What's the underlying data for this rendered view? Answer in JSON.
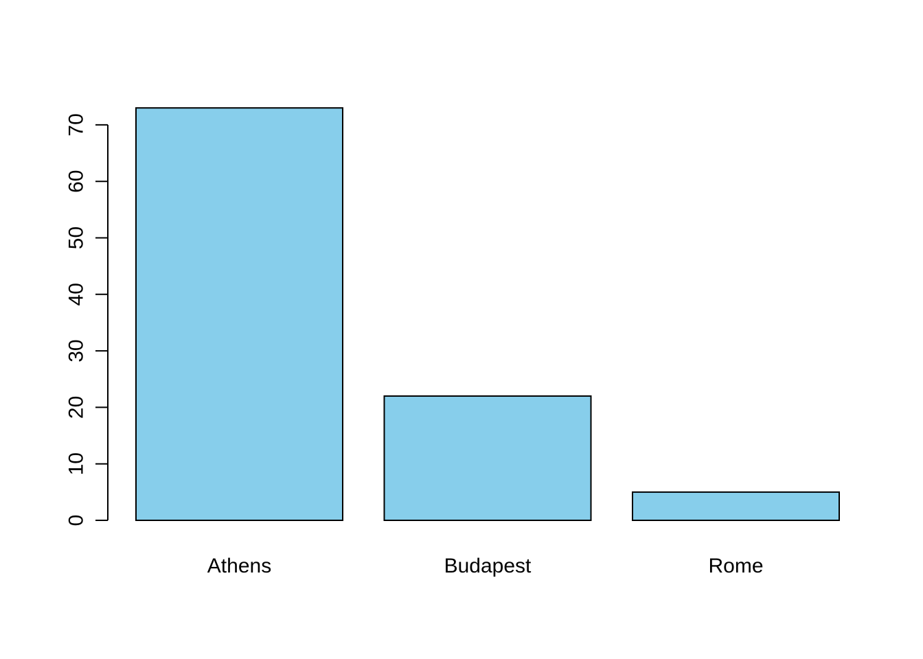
{
  "chart_data": {
    "type": "bar",
    "categories": [
      "Athens",
      "Budapest",
      "Rome"
    ],
    "values": [
      73,
      22,
      5
    ],
    "title": "",
    "xlabel": "",
    "ylabel": "",
    "ylim": [
      0,
      73
    ],
    "yticks": [
      0,
      10,
      20,
      30,
      40,
      50,
      60,
      70
    ],
    "grid": false,
    "bar_color": "#87CEEB",
    "edge_color": "#000000"
  }
}
